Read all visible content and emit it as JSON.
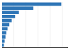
{
  "chart_data": {
    "type": "bar",
    "orientation": "horizontal",
    "values": [
      49.3,
      26.0,
      14.0,
      10.8,
      8.0,
      6.0,
      4.5,
      3.5,
      2.8,
      2.1,
      1.5
    ],
    "color": "#2e75b6",
    "xlim": [
      0,
      55
    ],
    "xticks": [
      10,
      20,
      30,
      40,
      50
    ],
    "grid": true,
    "tick_labels": false
  }
}
